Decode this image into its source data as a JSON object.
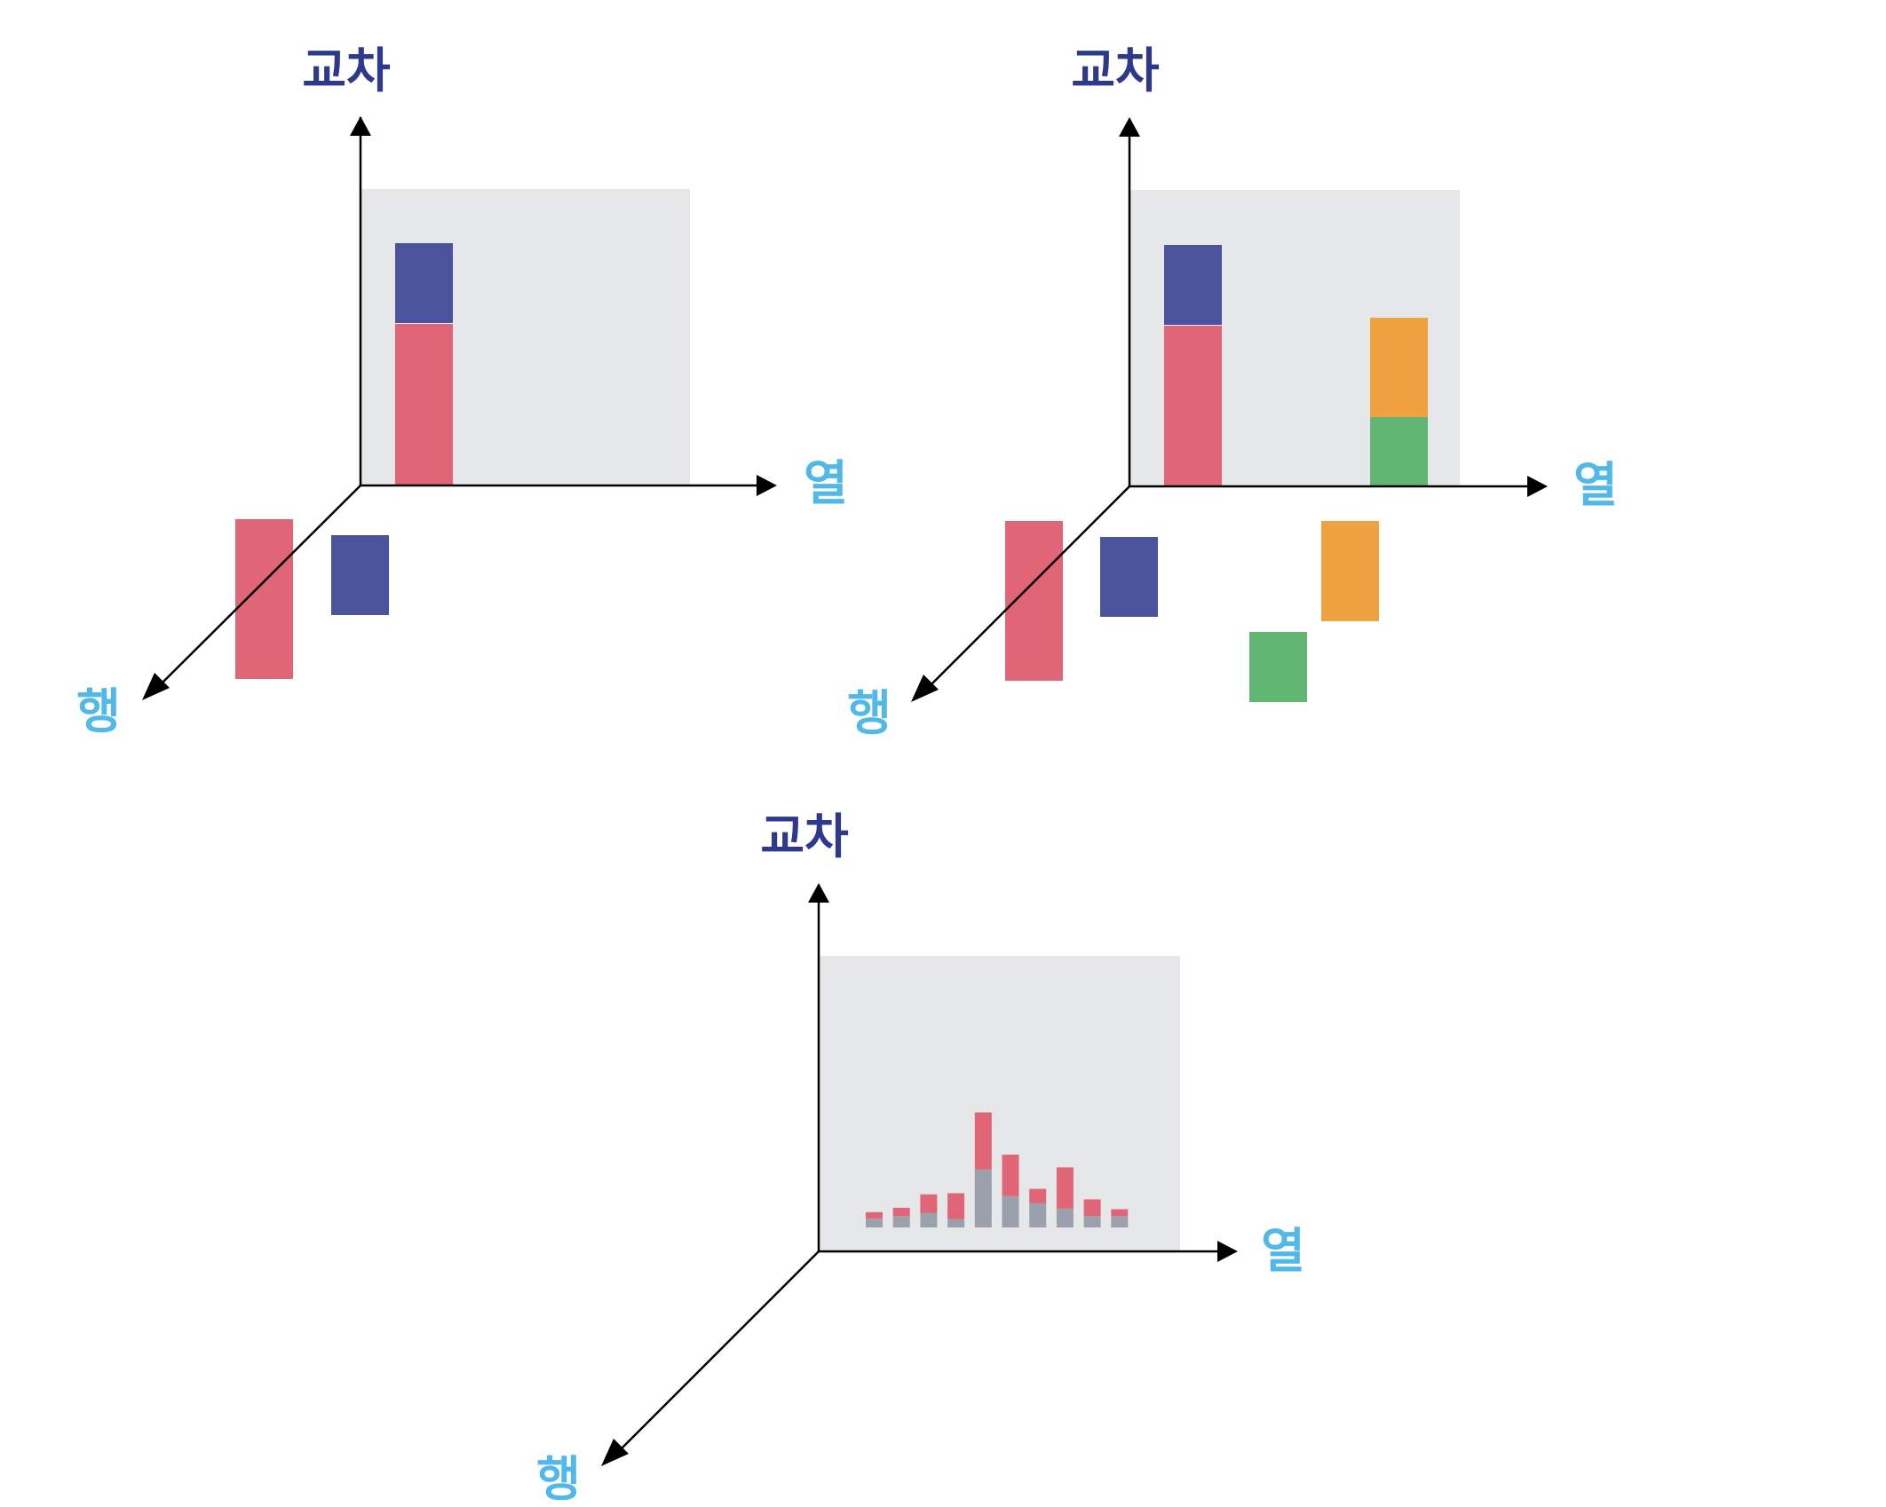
{
  "labels": {
    "cross": "교차",
    "column": "열",
    "row": "행"
  },
  "colors": {
    "red": "#e06577",
    "blue": "#4a539c",
    "orange": "#eea340",
    "green": "#62b673",
    "grey": "#9aa1ac",
    "panel": "#e6e7e9",
    "cross_label": "#2d3a8c",
    "axis_label": "#52b8e8",
    "axis": "#000000"
  },
  "diagrams": [
    {
      "id": "top-left",
      "items": [
        {
          "name": "red",
          "row_share": 2,
          "col_share": 0,
          "cross_stack": "bottom"
        },
        {
          "name": "blue",
          "row_share": 1,
          "col_share": 0,
          "cross_stack": "top"
        }
      ]
    },
    {
      "id": "top-right",
      "items": [
        {
          "name": "red",
          "row_share": 2,
          "cross_stack": "bottom"
        },
        {
          "name": "blue",
          "row_share": 1,
          "cross_stack": "top"
        },
        {
          "name": "orange",
          "row_share": 1.25,
          "cross_stack": "top"
        },
        {
          "name": "green",
          "row_share": 0.9,
          "cross_stack": "bottom"
        }
      ]
    },
    {
      "id": "bottom",
      "chart_data": {
        "type": "bar",
        "series": [
          {
            "color": "red",
            "values": [
              1.8,
              2.3,
              5.1,
              7.1,
              15.7,
              11.4,
              3.9,
              11.3,
              4.6,
              1.9
            ]
          },
          {
            "color": "grey",
            "values": [
              2.4,
              3.1,
              4.0,
              2.3,
              15.9,
              8.6,
              6.7,
              5.2,
              3.1,
              3.1
            ]
          }
        ],
        "stacked": true
      }
    }
  ]
}
